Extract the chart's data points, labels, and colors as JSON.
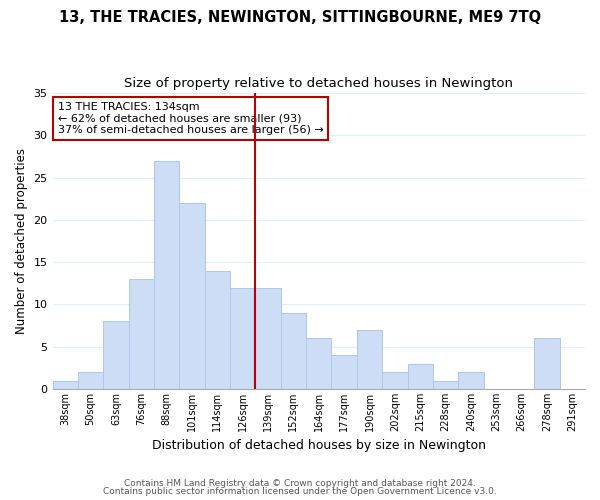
{
  "title": "13, THE TRACIES, NEWINGTON, SITTINGBOURNE, ME9 7TQ",
  "subtitle": "Size of property relative to detached houses in Newington",
  "xlabel": "Distribution of detached houses by size in Newington",
  "ylabel": "Number of detached properties",
  "bar_labels": [
    "38sqm",
    "50sqm",
    "63sqm",
    "76sqm",
    "88sqm",
    "101sqm",
    "114sqm",
    "126sqm",
    "139sqm",
    "152sqm",
    "164sqm",
    "177sqm",
    "190sqm",
    "202sqm",
    "215sqm",
    "228sqm",
    "240sqm",
    "253sqm",
    "266sqm",
    "278sqm",
    "291sqm"
  ],
  "bar_values": [
    1,
    2,
    8,
    13,
    27,
    22,
    14,
    12,
    12,
    9,
    6,
    4,
    7,
    2,
    3,
    1,
    2,
    0,
    0,
    6,
    0
  ],
  "bar_color": "#ccddf5",
  "bar_edge_color": "#aec6e8",
  "vline_color": "#bb0000",
  "annotation_title": "13 THE TRACIES: 134sqm",
  "annotation_line1": "← 62% of detached houses are smaller (93)",
  "annotation_line2": "37% of semi-detached houses are larger (56) →",
  "annotation_box_color": "#ffffff",
  "annotation_box_edge": "#bb0000",
  "ylim": [
    0,
    35
  ],
  "yticks": [
    0,
    5,
    10,
    15,
    20,
    25,
    30,
    35
  ],
  "footnote1": "Contains HM Land Registry data © Crown copyright and database right 2024.",
  "footnote2": "Contains public sector information licensed under the Open Government Licence v3.0.",
  "bg_color": "#ffffff",
  "grid_color": "#ddeeff",
  "title_fontsize": 10.5,
  "subtitle_fontsize": 9.5,
  "vline_pos": 7.5
}
